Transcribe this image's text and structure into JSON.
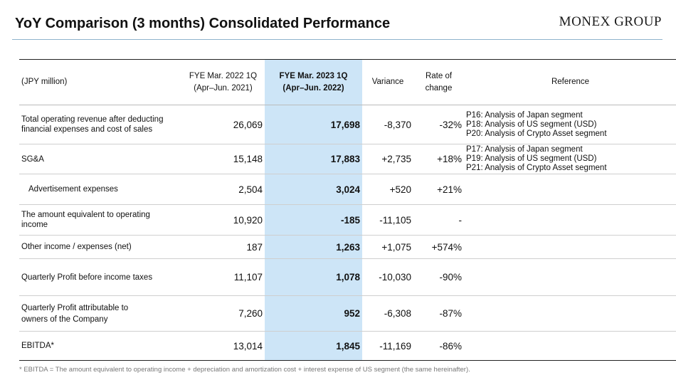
{
  "header": {
    "title": "YoY Comparison (3 months) Consolidated Performance",
    "logo_text": "MONEX GROUP"
  },
  "table": {
    "columns": {
      "label": "(JPY million)",
      "prev_line1": "FYE Mar. 2022 1Q",
      "prev_line2": "(Apr–Jun. 2021)",
      "cur_line1": "FYE Mar. 2023 1Q",
      "cur_line2": "(Apr–Jun. 2022)",
      "variance": "Variance",
      "rate_line1": "Rate of",
      "rate_line2": "change",
      "reference": "Reference"
    },
    "rows": [
      {
        "label_lines": [
          "Total operating revenue after deducting",
          "financial expenses and cost of sales"
        ],
        "prev": "26,069",
        "cur": "17,698",
        "variance": "-8,370",
        "rate": "-32%",
        "ref": [
          "P16: Analysis of Japan segment",
          "P18: Analysis of US segment (USD)",
          "P20: Analysis of Crypto Asset segment"
        ]
      },
      {
        "label_lines": [
          "SG&A"
        ],
        "prev": "15,148",
        "cur": "17,883",
        "variance": "+2,735",
        "rate": "+18%",
        "ref": [
          "P17: Analysis of Japan segment",
          "P19: Analysis of US segment (USD)",
          "P21: Analysis of Crypto Asset segment"
        ]
      },
      {
        "label_lines": [
          "Advertisement expenses"
        ],
        "prev": "2,504",
        "cur": "3,024",
        "variance": "+520",
        "rate": "+21%",
        "ref": [
          "",
          "",
          ""
        ]
      },
      {
        "label_lines": [
          "The amount equivalent to operating",
          "income"
        ],
        "prev": "10,920",
        "cur": "-185",
        "variance": "-11,105",
        "rate": "-",
        "ref": [
          "",
          "",
          ""
        ]
      },
      {
        "label_lines": [
          "Other income / expenses (net)"
        ],
        "prev": "187",
        "cur": "1,263",
        "variance": "+1,075",
        "rate": "+574%",
        "ref": [
          "",
          "",
          ""
        ]
      },
      {
        "label_lines": [
          "Quarterly Profit before income taxes"
        ],
        "prev": "11,107",
        "cur": "1,078",
        "variance": "-10,030",
        "rate": "-90%",
        "ref": [
          "",
          "",
          ""
        ]
      },
      {
        "label_lines": [
          "Quarterly Profit attributable to",
          "owners of the Company"
        ],
        "prev": "7,260",
        "cur": "952",
        "variance": "-6,308",
        "rate": "-87%",
        "ref": [
          "",
          "",
          ""
        ]
      },
      {
        "label_lines": [
          "EBITDA*"
        ],
        "prev": "13,014",
        "cur": "1,845",
        "variance": "-11,169",
        "rate": "-86%",
        "ref": [
          "",
          "",
          ""
        ]
      }
    ]
  },
  "footnote": "* EBITDA = The amount equivalent to operating income + depreciation and amortization cost + interest expense of US segment (the same hereinafter)."
}
